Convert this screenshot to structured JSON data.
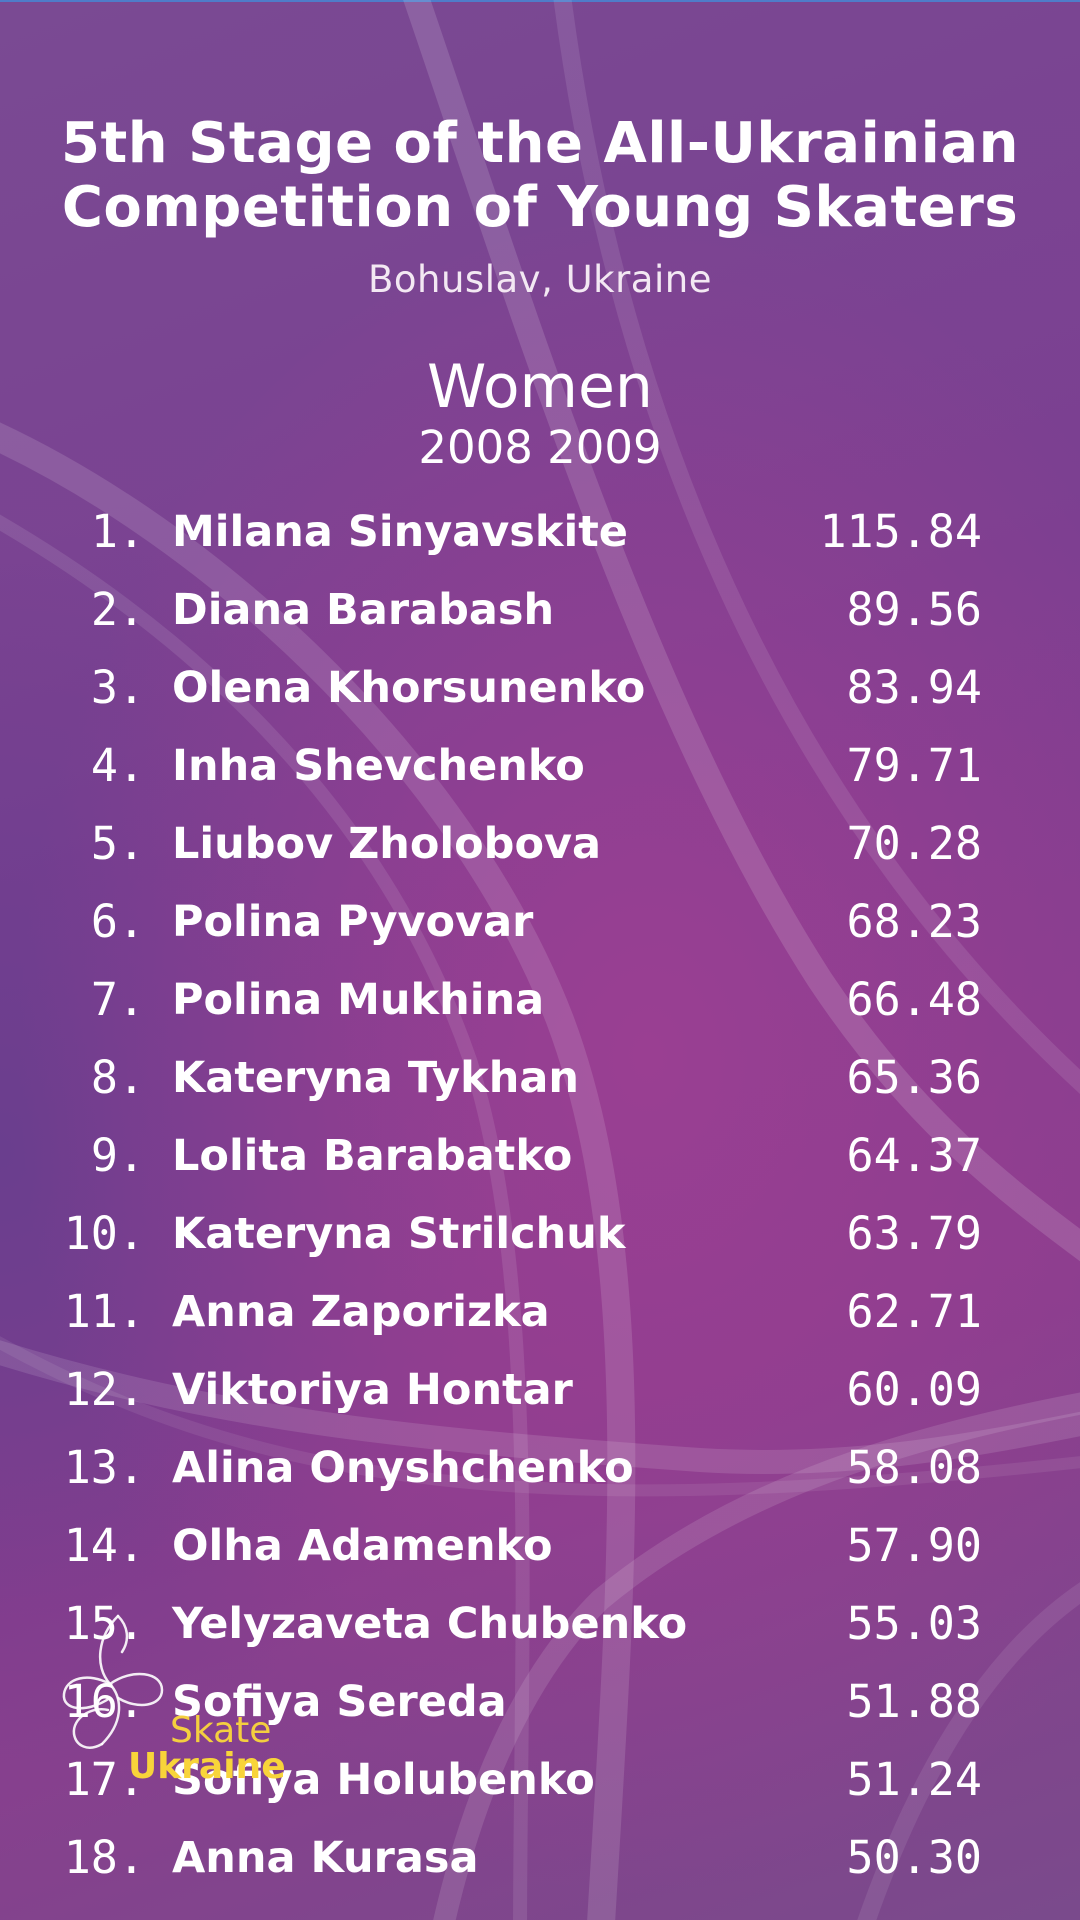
{
  "header": {
    "title_line1": "5th Stage of the All-Ukrainian",
    "title_line2": "Competition of Young Skaters",
    "location": "Bohuslav, Ukraine"
  },
  "category": {
    "name": "Women",
    "years": "2008 2009"
  },
  "results": [
    {
      "rank": "1.",
      "name": "Milana Sinyavskite",
      "score": "115.84"
    },
    {
      "rank": "2.",
      "name": "Diana Barabash",
      "score": "89.56"
    },
    {
      "rank": "3.",
      "name": "Olena Khorsunenko",
      "score": "83.94"
    },
    {
      "rank": "4.",
      "name": "Inha Shevchenko",
      "score": "79.71"
    },
    {
      "rank": "5.",
      "name": "Liubov Zholobova",
      "score": "70.28"
    },
    {
      "rank": "6.",
      "name": "Polina Pyvovar",
      "score": "68.23"
    },
    {
      "rank": "7.",
      "name": "Polina Mukhina",
      "score": "66.48"
    },
    {
      "rank": "8.",
      "name": "Kateryna Tykhan",
      "score": "65.36"
    },
    {
      "rank": "9.",
      "name": "Lolita Barabatko",
      "score": "64.37"
    },
    {
      "rank": "10.",
      "name": "Kateryna Strilchuk",
      "score": "63.79"
    },
    {
      "rank": "11.",
      "name": "Anna Zaporizka",
      "score": "62.71"
    },
    {
      "rank": "12.",
      "name": "Viktoriya Hontar",
      "score": "60.09"
    },
    {
      "rank": "13.",
      "name": "Alina Onyshchenko",
      "score": "58.08"
    },
    {
      "rank": "14.",
      "name": "Olha Adamenko",
      "score": "57.90"
    },
    {
      "rank": "15.",
      "name": "Yelyzaveta Chubenko",
      "score": "55.03"
    },
    {
      "rank": "16.",
      "name": "Sofiya Sereda",
      "score": "51.88"
    },
    {
      "rank": "17.",
      "name": "Sofiya Holubenko",
      "score": "51.24"
    },
    {
      "rank": "18.",
      "name": "Anna Kurasa",
      "score": "50.30"
    }
  ],
  "logo": {
    "icon": "skater-swirl-icon",
    "word1": "Skate",
    "word2": "Ukraine"
  },
  "colors": {
    "background": "#7b3f91",
    "text": "#ffffff",
    "logo_accent": "#f4cf3f"
  }
}
